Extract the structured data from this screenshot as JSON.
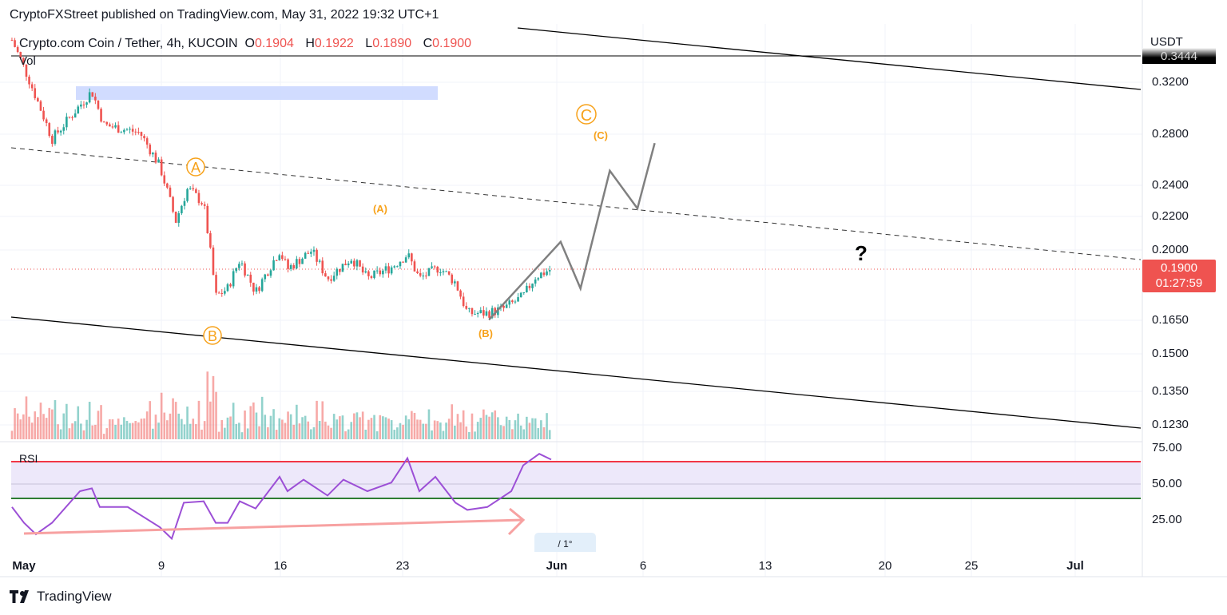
{
  "header": {
    "published": "CryptoFXStreet published on TradingView.com, May 31, 2022 19:32 UTC+1"
  },
  "legend": {
    "symbol": "Crypto.com Coin / Tether, 4h, KUCOIN",
    "o_label": "O",
    "o": "0.1904",
    "h_label": "H",
    "h": "0.1922",
    "l_label": "L",
    "l": "0.1890",
    "c_label": "C",
    "c": "0.1900"
  },
  "volume_label": "Vol",
  "rsi_label": "RSI",
  "price_axis": {
    "currency": "USDT",
    "high_tag": "0.3444",
    "current_price": "0.1900",
    "countdown": "01:27:59",
    "ticks": [
      "0.3200",
      "0.2800",
      "0.2400",
      "0.2200",
      "0.2000",
      "0.1650",
      "0.1500",
      "0.1350",
      "0.1230"
    ]
  },
  "rsi_axis": {
    "ticks": [
      "75.00",
      "50.00",
      "25.00"
    ]
  },
  "time_axis": {
    "ticks": [
      "May",
      "9",
      "16",
      "23",
      "Jun",
      "6",
      "13",
      "20",
      "25",
      "Jul"
    ]
  },
  "annotations": {
    "circle_a": "A",
    "circle_b": "B",
    "circle_c": "C",
    "paren_a": "(A)",
    "paren_b": "(B)",
    "paren_c": "(C)",
    "question": "?",
    "tool_box": "/     1°"
  },
  "footer": {
    "brand": "TradingView"
  },
  "colors": {
    "up": "#26a69a",
    "down": "#ef5350",
    "wave": "#f7a21b",
    "rsi": "#9c4fd6",
    "channel": "#000000",
    "projection": "#808080",
    "zone": "#c9d6ff"
  },
  "chart_data": {
    "type": "candlestick",
    "title": "Crypto.com Coin / Tether, 4h, KUCOIN",
    "yscale": "log",
    "ylim": [
      0.118,
      0.37
    ],
    "x_unit": "days since May 1 2022",
    "price_path": [
      [
        -0.65,
        0.36
      ],
      [
        0.74,
        0.307
      ],
      [
        1.67,
        0.273
      ],
      [
        2.82,
        0.292
      ],
      [
        3.98,
        0.312
      ],
      [
        4.68,
        0.284
      ],
      [
        6.76,
        0.278
      ],
      [
        7.92,
        0.253
      ],
      [
        8.84,
        0.217
      ],
      [
        9.54,
        0.238
      ],
      [
        10.46,
        0.228
      ],
      [
        11.16,
        0.176
      ],
      [
        11.85,
        0.18
      ],
      [
        12.55,
        0.195
      ],
      [
        13.47,
        0.178
      ],
      [
        14.86,
        0.2
      ],
      [
        15.32,
        0.19
      ],
      [
        16.71,
        0.2
      ],
      [
        17.64,
        0.185
      ],
      [
        19.03,
        0.196
      ],
      [
        19.95,
        0.185
      ],
      [
        21.34,
        0.191
      ],
      [
        22.27,
        0.198
      ],
      [
        22.96,
        0.185
      ],
      [
        24.12,
        0.191
      ],
      [
        25.05,
        0.183
      ],
      [
        25.74,
        0.168
      ],
      [
        26.9,
        0.168
      ],
      [
        27.82,
        0.17
      ],
      [
        28.98,
        0.176
      ],
      [
        29.68,
        0.186
      ],
      [
        30.6,
        0.19
      ]
    ],
    "rsi_path": [
      [
        -0.65,
        34
      ],
      [
        0.05,
        23
      ],
      [
        0.74,
        15
      ],
      [
        1.67,
        23
      ],
      [
        3.29,
        45
      ],
      [
        3.98,
        47
      ],
      [
        4.44,
        34
      ],
      [
        6.06,
        34
      ],
      [
        7.92,
        20
      ],
      [
        8.61,
        12
      ],
      [
        9.31,
        37
      ],
      [
        10.46,
        38
      ],
      [
        11.16,
        23
      ],
      [
        11.85,
        23
      ],
      [
        12.55,
        38
      ],
      [
        13.47,
        33
      ],
      [
        14.86,
        55
      ],
      [
        15.32,
        45
      ],
      [
        16.25,
        53
      ],
      [
        17.64,
        42
      ],
      [
        18.56,
        53
      ],
      [
        19.95,
        45
      ],
      [
        21.34,
        51
      ],
      [
        22.27,
        68
      ],
      [
        22.96,
        45
      ],
      [
        23.89,
        55
      ],
      [
        25.05,
        37
      ],
      [
        25.74,
        32
      ],
      [
        26.9,
        34
      ],
      [
        28.29,
        45
      ],
      [
        28.98,
        63
      ],
      [
        29.91,
        71
      ],
      [
        30.6,
        67
      ]
    ],
    "rsi_levels": {
      "upper": 65,
      "lower": 40
    },
    "current_price": 0.19,
    "resistance_zone": [
      0.308,
      0.318
    ],
    "projection_path": [
      [
        27.0,
        0.165
      ],
      [
        31.15,
        0.205
      ],
      [
        32.3,
        0.18
      ],
      [
        34.0,
        0.25
      ],
      [
        35.6,
        0.225
      ],
      [
        36.6,
        0.27
      ]
    ]
  }
}
